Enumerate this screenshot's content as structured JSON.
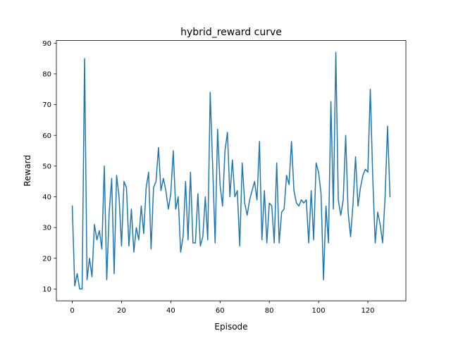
{
  "chart_data": {
    "type": "line",
    "title": "hybrid_reward curve",
    "xlabel": "Episode",
    "ylabel": "Reward",
    "xlim": [
      -6.45,
      135.45
    ],
    "ylim": [
      6.15,
      90.85
    ],
    "xticks": [
      0,
      20,
      40,
      60,
      80,
      100,
      120
    ],
    "yticks": [
      10,
      20,
      30,
      40,
      50,
      60,
      70,
      80,
      90
    ],
    "grid": false,
    "series": [
      {
        "color": "#1f77b4",
        "x": [
          0,
          1,
          2,
          3,
          4,
          5,
          6,
          7,
          8,
          9,
          10,
          11,
          12,
          13,
          14,
          15,
          16,
          17,
          18,
          19,
          20,
          21,
          22,
          23,
          24,
          25,
          26,
          27,
          28,
          29,
          30,
          31,
          32,
          33,
          34,
          35,
          36,
          37,
          38,
          39,
          40,
          41,
          42,
          43,
          44,
          45,
          46,
          47,
          48,
          49,
          50,
          51,
          52,
          53,
          54,
          55,
          56,
          57,
          58,
          59,
          60,
          61,
          62,
          63,
          64,
          65,
          66,
          67,
          68,
          69,
          70,
          71,
          72,
          73,
          74,
          75,
          76,
          77,
          78,
          79,
          80,
          81,
          82,
          83,
          84,
          85,
          86,
          87,
          88,
          89,
          90,
          91,
          92,
          93,
          94,
          95,
          96,
          97,
          98,
          99,
          100,
          101,
          102,
          103,
          104,
          105,
          106,
          107,
          108,
          109,
          110,
          111,
          112,
          113,
          114,
          115,
          116,
          117,
          118,
          119,
          120,
          121,
          122,
          123,
          124,
          125,
          126,
          127,
          128,
          129
        ],
        "y": [
          37,
          11,
          15,
          10,
          10,
          85,
          13,
          20,
          14,
          31,
          26,
          29,
          23,
          50,
          13,
          35,
          46,
          15,
          47,
          40,
          24,
          45,
          43,
          24,
          36,
          22,
          30,
          26,
          37,
          28,
          43,
          48,
          23,
          43,
          45,
          56,
          42,
          46,
          42,
          36,
          41,
          55,
          36,
          40,
          22,
          27,
          45,
          26,
          48,
          25,
          25,
          41,
          24,
          27,
          40,
          26,
          74,
          50,
          25,
          62,
          44,
          37,
          55,
          61,
          40,
          52,
          40,
          42,
          24,
          51,
          38,
          34,
          39,
          42,
          45,
          39,
          58,
          26,
          42,
          25,
          38,
          37,
          25,
          51,
          25,
          35,
          36,
          47,
          44,
          58,
          42,
          38,
          37,
          39,
          38,
          39,
          25,
          42,
          26,
          51,
          48,
          41,
          13,
          37,
          25,
          71,
          36,
          87,
          39,
          34,
          39,
          60,
          35,
          27,
          38,
          53,
          37,
          43,
          47,
          49,
          48,
          75,
          46,
          25,
          35,
          31,
          25,
          40,
          63,
          40
        ]
      }
    ]
  }
}
